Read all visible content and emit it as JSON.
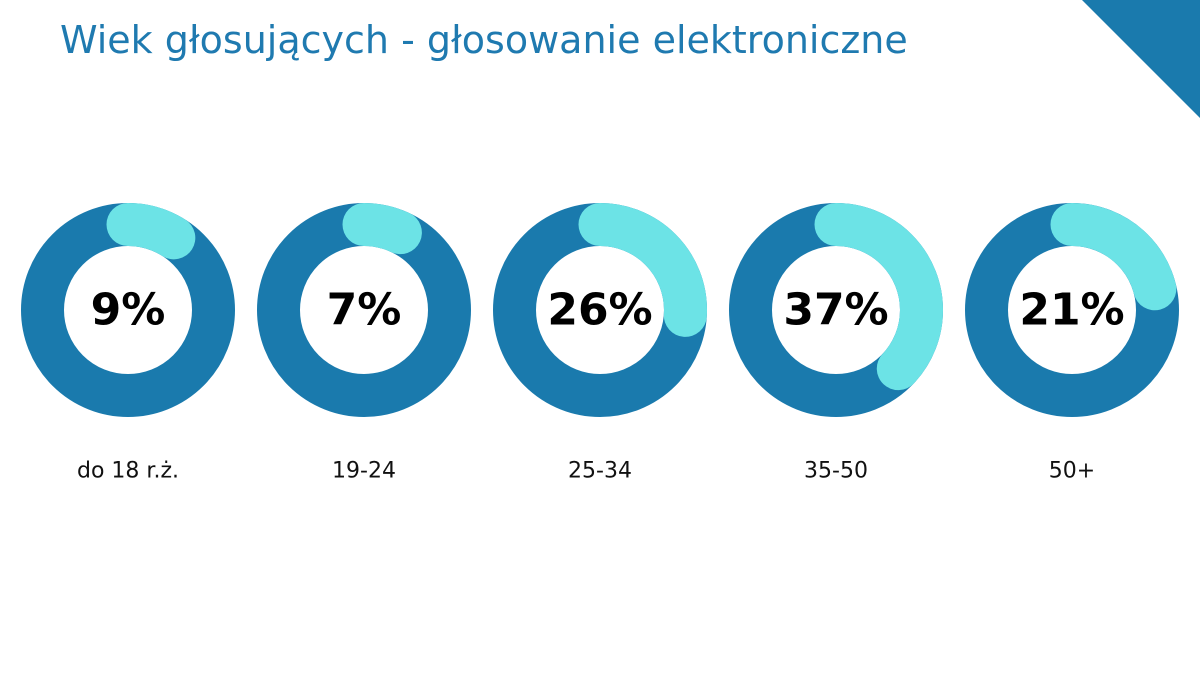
{
  "chart_data": {
    "type": "donut",
    "title": "Wiek głosujących - głosowanie elektroniczne",
    "categories": [
      "do 18 r.ż.",
      "19-24",
      "25-34",
      "35-50",
      "50+"
    ],
    "values": [
      9,
      7,
      26,
      37,
      21
    ],
    "value_labels": [
      "9%",
      "7%",
      "26%",
      "37%",
      "21%"
    ],
    "color": "#6ce3e6",
    "track_color": "#1a7aad"
  }
}
